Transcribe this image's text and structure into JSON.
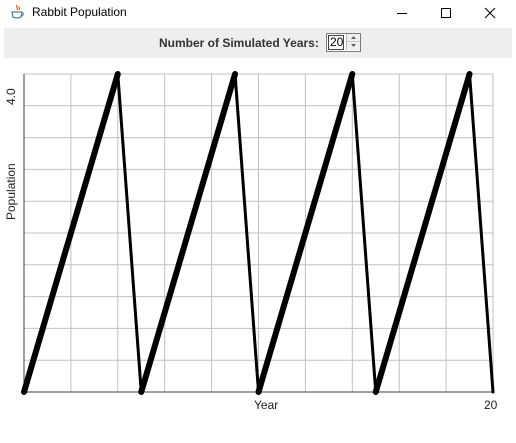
{
  "window": {
    "title": "Rabbit Population",
    "app_icon": "java-cup-icon",
    "controls": [
      "minimize-icon",
      "maximize-icon",
      "close-icon"
    ]
  },
  "controls": {
    "years_label": "Number of Simulated Years:",
    "years_value": "20"
  },
  "chart_data": {
    "type": "line",
    "title": "",
    "xlabel": "Year",
    "ylabel": "Population",
    "x_tick_labels": [
      "20"
    ],
    "y_tick_labels": [
      "4.0"
    ],
    "xlim": [
      0,
      20
    ],
    "ylim": [
      0,
      4.0
    ],
    "grid": true,
    "series": [
      {
        "x": [
          0,
          4,
          5,
          9,
          10,
          14,
          15,
          19,
          20
        ],
        "y": [
          0,
          4,
          0,
          4,
          0,
          4,
          0,
          4,
          0
        ]
      }
    ],
    "colors": {
      "line": "#000000",
      "grid": "#c0c0c0",
      "axes": "#404040"
    }
  }
}
